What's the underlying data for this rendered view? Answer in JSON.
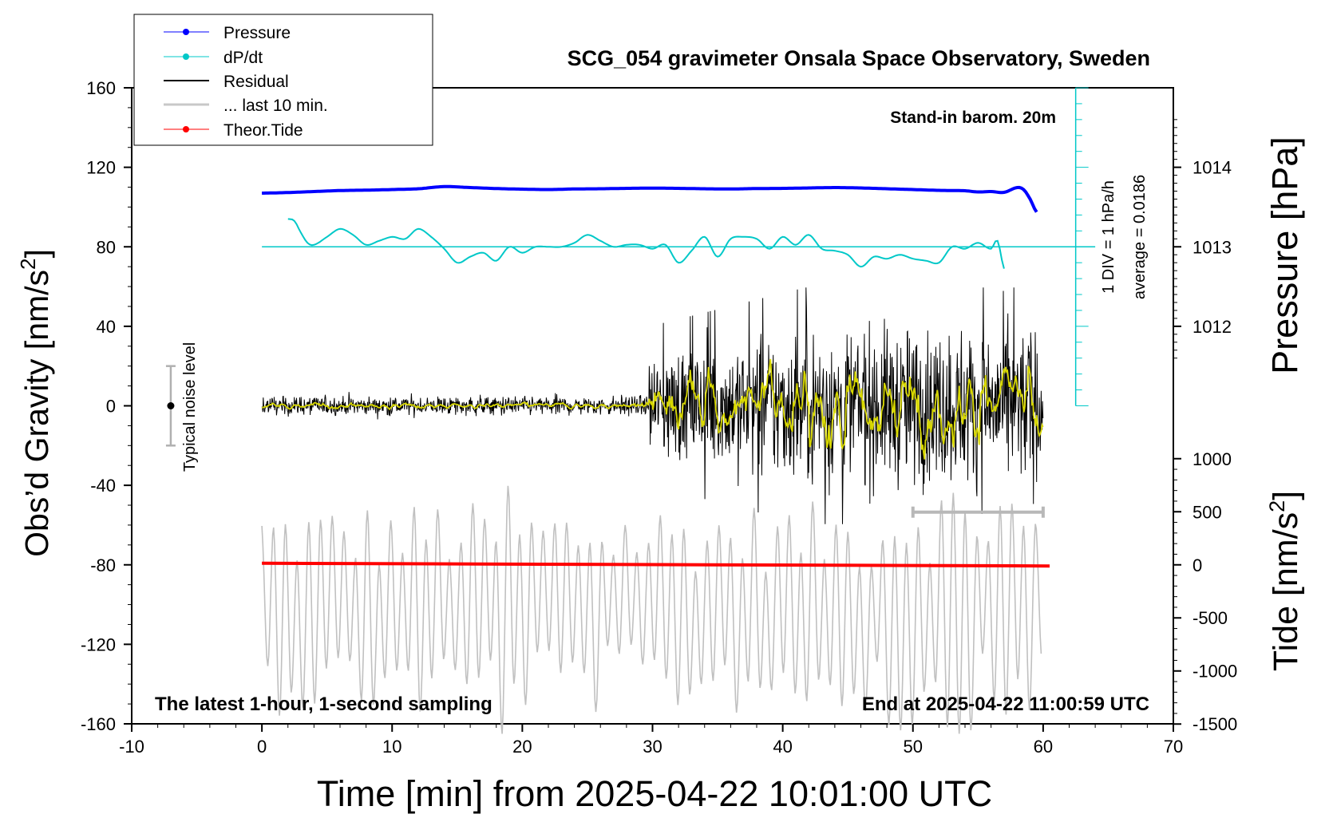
{
  "chart_data": {
    "type": "line",
    "title": "SCG_054 gravimeter Onsala Space Observatory, Sweden",
    "xlabel": "Time [min] from 2025-04-22 10:01:00 UTC",
    "ylabel": "Obs’d Gravity [nm/s²]",
    "ylabel_base": "Obs’d Gravity [nm/s",
    "ylabel_sup": "2",
    "ylabel_end": "]",
    "xlim": [
      -10,
      70
    ],
    "ylim": [
      -160,
      160
    ],
    "xticks": [
      "-10",
      "0",
      "10",
      "20",
      "30",
      "40",
      "50",
      "60",
      "70"
    ],
    "yticks": [
      "160",
      "120",
      "80",
      "40",
      "0",
      "-40",
      "-80",
      "-120",
      "-160"
    ],
    "pressure_axis": {
      "label": "Pressure [hPa]",
      "ticks": [
        "1014",
        "1013",
        "1012"
      ],
      "tick_values": [
        1014,
        1013,
        1012
      ]
    },
    "tide_axis": {
      "label_base": "Tide [nm/s",
      "label_sup": "2",
      "label_end": "]",
      "ticks": [
        "1000",
        "500",
        "0",
        "-500",
        "-1000",
        "-1500"
      ],
      "tick_values": [
        1000,
        500,
        0,
        -500,
        -1000,
        -1500
      ]
    },
    "legend": {
      "position": "top-left",
      "entries": [
        "Pressure",
        "dP/dt",
        "Residual",
        "... last 10 min.",
        "Theor.Tide"
      ]
    },
    "annotations": {
      "barometer": "Stand-in barom. 20m",
      "div_scale": "1 DIV = 1 hPa/h",
      "average": "average = 0.0186",
      "noise": "Typical noise level",
      "sampling": "The latest 1-hour, 1-second sampling",
      "end_time": "End at 2025-04-22 11:00:59 UTC"
    },
    "series": [
      {
        "name": "Pressure",
        "color": "#0000ff",
        "x": [
          0,
          2,
          4,
          6,
          8,
          10,
          12,
          14,
          16,
          18,
          20,
          22,
          24,
          26,
          28,
          30,
          32,
          34,
          36,
          38,
          40,
          42,
          44,
          46,
          48,
          50,
          52,
          54,
          55,
          56,
          57,
          58,
          58.5,
          59,
          59.5
        ],
        "values": [
          107,
          107.3,
          107.8,
          108.3,
          108.5,
          108.8,
          109.2,
          110.3,
          109.8,
          109.3,
          109,
          108.8,
          109.1,
          109.2,
          109.4,
          109.5,
          109.4,
          109.2,
          109.1,
          109.3,
          109.4,
          109.6,
          109.8,
          109.6,
          109.2,
          108.8,
          108.4,
          108.2,
          107.6,
          107.8,
          107.4,
          109.8,
          108.8,
          104,
          97.5
        ]
      },
      {
        "name": "dP/dt",
        "color": "#00c8c8",
        "baseline": 80,
        "x": [
          2,
          2.5,
          3,
          3.5,
          4,
          5,
          6,
          7,
          8,
          9,
          10,
          11,
          12,
          13,
          14,
          15,
          16,
          17,
          18,
          19,
          20,
          21,
          22,
          23,
          24,
          25,
          26,
          27,
          28,
          29,
          30,
          31,
          32,
          33,
          34,
          35,
          36,
          37,
          38,
          39,
          40,
          41,
          42,
          43,
          44,
          45,
          46,
          47,
          48,
          49,
          50,
          51,
          52,
          53,
          54,
          55,
          56,
          56.5,
          57
        ],
        "values": [
          94,
          93,
          87,
          82,
          81,
          85,
          89,
          86,
          81,
          83,
          85,
          84,
          89,
          85,
          79,
          72,
          75,
          77,
          73,
          80,
          77,
          80,
          80,
          80,
          82,
          86,
          83,
          80,
          81,
          81,
          79,
          81,
          72,
          78,
          85,
          75,
          84,
          85,
          84,
          79,
          85,
          81,
          86,
          79,
          78,
          76,
          70,
          75,
          74,
          76,
          74,
          73,
          72,
          80,
          79,
          82,
          79,
          83,
          69
        ]
      },
      {
        "name": "Residual",
        "color": "#000000",
        "x_range": [
          0,
          60
        ],
        "noise_before_30min": 3,
        "noise_after_30min": 35,
        "range": [
          -70,
          66
        ]
      },
      {
        "name": "... last 10 min.",
        "color": "#c8c8c8",
        "x_range": [
          0,
          60
        ],
        "range": [
          -165,
          -37
        ]
      },
      {
        "name": "Theor.Tide",
        "color": "#ff0000",
        "x": [
          0,
          60.5
        ],
        "values": [
          -79.2,
          -80.6
        ]
      }
    ],
    "noise_bar": {
      "x": -7,
      "center": 0,
      "range": [
        -20,
        20
      ]
    },
    "last10_bar": {
      "x_range": [
        50,
        60
      ],
      "y": -53.5
    }
  }
}
